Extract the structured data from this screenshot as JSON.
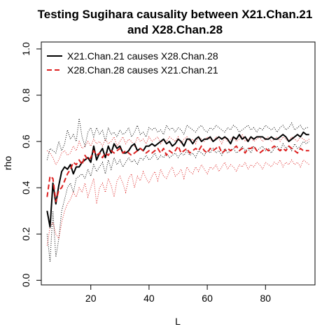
{
  "chart_data": {
    "type": "line",
    "title": [
      "Testing Sugihara causality between  X21.Chan.21",
      "and X28.Chan.28"
    ],
    "xlabel": "L",
    "ylabel": "rho",
    "xlim": [
      3,
      97
    ],
    "ylim": [
      -0.02,
      1.03
    ],
    "xticks": [
      20,
      40,
      60,
      80
    ],
    "yticks": [
      0.0,
      0.2,
      0.4,
      0.6,
      0.8,
      1.0
    ],
    "x": [
      5,
      6,
      7,
      8,
      9,
      10,
      11,
      12,
      13,
      14,
      15,
      16,
      17,
      18,
      19,
      20,
      21,
      22,
      23,
      24,
      25,
      26,
      27,
      28,
      29,
      30,
      31,
      32,
      33,
      34,
      35,
      36,
      37,
      38,
      39,
      40,
      41,
      42,
      43,
      44,
      45,
      46,
      47,
      48,
      49,
      50,
      51,
      52,
      53,
      54,
      55,
      56,
      57,
      58,
      59,
      60,
      61,
      62,
      63,
      64,
      65,
      66,
      67,
      68,
      69,
      70,
      71,
      72,
      73,
      74,
      75,
      76,
      77,
      78,
      79,
      80,
      81,
      82,
      83,
      84,
      85,
      86,
      87,
      88,
      89,
      90,
      91,
      92,
      93,
      94,
      95
    ],
    "series": [
      {
        "name": "X21.Chan.21 causes X28.Chan.28",
        "color": "#000000",
        "dash": "solid",
        "values": [
          0.3,
          0.23,
          0.42,
          0.33,
          0.41,
          0.47,
          0.49,
          0.48,
          0.5,
          0.46,
          0.49,
          0.49,
          0.51,
          0.52,
          0.53,
          0.51,
          0.58,
          0.52,
          0.55,
          0.57,
          0.53,
          0.58,
          0.55,
          0.59,
          0.57,
          0.58,
          0.55,
          0.55,
          0.56,
          0.58,
          0.59,
          0.56,
          0.57,
          0.56,
          0.58,
          0.58,
          0.59,
          0.58,
          0.59,
          0.6,
          0.61,
          0.59,
          0.6,
          0.58,
          0.59,
          0.61,
          0.6,
          0.58,
          0.61,
          0.61,
          0.59,
          0.61,
          0.62,
          0.6,
          0.61,
          0.61,
          0.62,
          0.6,
          0.61,
          0.62,
          0.61,
          0.62,
          0.61,
          0.59,
          0.62,
          0.61,
          0.63,
          0.61,
          0.62,
          0.6,
          0.62,
          0.61,
          0.62,
          0.62,
          0.62,
          0.61,
          0.61,
          0.62,
          0.61,
          0.61,
          0.62,
          0.63,
          0.62,
          0.6,
          0.61,
          0.62,
          0.63,
          0.62,
          0.64,
          0.63,
          0.63
        ]
      },
      {
        "name": "X28.Chan.28 causes X21.Chan.21",
        "color": "#dd2020",
        "dash": "dashed",
        "values": [
          0.36,
          0.45,
          0.44,
          0.34,
          0.39,
          0.4,
          0.43,
          0.46,
          0.48,
          0.51,
          0.5,
          0.52,
          0.5,
          0.54,
          0.52,
          0.53,
          0.56,
          0.54,
          0.55,
          0.53,
          0.55,
          0.54,
          0.56,
          0.55,
          0.56,
          0.57,
          0.55,
          0.56,
          0.55,
          0.54,
          0.55,
          0.56,
          0.57,
          0.56,
          0.55,
          0.56,
          0.55,
          0.56,
          0.57,
          0.55,
          0.57,
          0.54,
          0.56,
          0.55,
          0.56,
          0.58,
          0.55,
          0.56,
          0.57,
          0.55,
          0.56,
          0.57,
          0.56,
          0.58,
          0.56,
          0.55,
          0.57,
          0.56,
          0.57,
          0.58,
          0.55,
          0.56,
          0.57,
          0.56,
          0.57,
          0.58,
          0.56,
          0.57,
          0.55,
          0.57,
          0.57,
          0.58,
          0.56,
          0.55,
          0.56,
          0.57,
          0.56,
          0.57,
          0.58,
          0.57,
          0.56,
          0.57,
          0.56,
          0.58,
          0.57,
          0.56,
          0.55,
          0.57,
          0.56,
          0.56,
          0.56
        ]
      }
    ],
    "bands": [
      {
        "color": "#000000",
        "upper": [
          0.52,
          0.57,
          0.56,
          0.55,
          0.6,
          0.56,
          0.59,
          0.65,
          0.61,
          0.63,
          0.6,
          0.7,
          0.62,
          0.58,
          0.64,
          0.66,
          0.62,
          0.66,
          0.63,
          0.65,
          0.6,
          0.66,
          0.63,
          0.64,
          0.62,
          0.65,
          0.63,
          0.64,
          0.66,
          0.62,
          0.64,
          0.67,
          0.63,
          0.64,
          0.62,
          0.66,
          0.65,
          0.66,
          0.64,
          0.65,
          0.63,
          0.67,
          0.65,
          0.66,
          0.64,
          0.66,
          0.65,
          0.63,
          0.67,
          0.66,
          0.65,
          0.64,
          0.66,
          0.67,
          0.65,
          0.64,
          0.66,
          0.65,
          0.67,
          0.66,
          0.65,
          0.64,
          0.66,
          0.65,
          0.67,
          0.66,
          0.64,
          0.65,
          0.66,
          0.67,
          0.65,
          0.66,
          0.64,
          0.66,
          0.65,
          0.67,
          0.66,
          0.65,
          0.66,
          0.64,
          0.66,
          0.67,
          0.65,
          0.66,
          0.68,
          0.65,
          0.66,
          0.67,
          0.65,
          0.66,
          0.66
        ],
        "lower": [
          0.2,
          0.08,
          0.3,
          0.1,
          0.18,
          0.3,
          0.35,
          0.4,
          0.42,
          0.38,
          0.44,
          0.45,
          0.46,
          0.44,
          0.48,
          0.45,
          0.5,
          0.47,
          0.49,
          0.51,
          0.46,
          0.52,
          0.48,
          0.53,
          0.5,
          0.52,
          0.49,
          0.51,
          0.53,
          0.51,
          0.52,
          0.5,
          0.53,
          0.52,
          0.54,
          0.52,
          0.53,
          0.55,
          0.52,
          0.54,
          0.53,
          0.55,
          0.53,
          0.54,
          0.55,
          0.53,
          0.55,
          0.54,
          0.56,
          0.54,
          0.55,
          0.53,
          0.56,
          0.55,
          0.54,
          0.56,
          0.55,
          0.57,
          0.55,
          0.56,
          0.54,
          0.57,
          0.55,
          0.56,
          0.57,
          0.55,
          0.56,
          0.58,
          0.56,
          0.57,
          0.55,
          0.58,
          0.56,
          0.57,
          0.58,
          0.56,
          0.57,
          0.55,
          0.57,
          0.58,
          0.56,
          0.59,
          0.57,
          0.58,
          0.56,
          0.59,
          0.57,
          0.58,
          0.6,
          0.59,
          0.6
        ]
      },
      {
        "color": "#dd2020",
        "upper": [
          0.56,
          0.55,
          0.53,
          0.5,
          0.52,
          0.55,
          0.56,
          0.54,
          0.55,
          0.58,
          0.56,
          0.6,
          0.57,
          0.58,
          0.6,
          0.58,
          0.61,
          0.59,
          0.6,
          0.58,
          0.61,
          0.59,
          0.6,
          0.62,
          0.58,
          0.6,
          0.62,
          0.59,
          0.61,
          0.6,
          0.58,
          0.62,
          0.6,
          0.61,
          0.59,
          0.62,
          0.6,
          0.61,
          0.62,
          0.59,
          0.61,
          0.6,
          0.62,
          0.61,
          0.6,
          0.62,
          0.59,
          0.61,
          0.62,
          0.6,
          0.61,
          0.59,
          0.62,
          0.61,
          0.6,
          0.62,
          0.61,
          0.6,
          0.62,
          0.61,
          0.59,
          0.62,
          0.6,
          0.61,
          0.62,
          0.6,
          0.61,
          0.63,
          0.6,
          0.61,
          0.62,
          0.6,
          0.61,
          0.62,
          0.6,
          0.61,
          0.62,
          0.6,
          0.61,
          0.62,
          0.6,
          0.62,
          0.61,
          0.6,
          0.62,
          0.61,
          0.6,
          0.62,
          0.61,
          0.6,
          0.61
        ],
        "lower": [
          0.15,
          0.23,
          0.25,
          0.2,
          0.18,
          0.25,
          0.3,
          0.33,
          0.35,
          0.38,
          0.36,
          0.4,
          0.38,
          0.42,
          0.36,
          0.4,
          0.44,
          0.33,
          0.4,
          0.42,
          0.38,
          0.44,
          0.41,
          0.36,
          0.43,
          0.45,
          0.42,
          0.38,
          0.44,
          0.46,
          0.4,
          0.45,
          0.43,
          0.47,
          0.44,
          0.42,
          0.45,
          0.47,
          0.43,
          0.48,
          0.45,
          0.44,
          0.47,
          0.49,
          0.45,
          0.46,
          0.48,
          0.44,
          0.49,
          0.47,
          0.46,
          0.49,
          0.47,
          0.5,
          0.48,
          0.46,
          0.49,
          0.48,
          0.5,
          0.47,
          0.49,
          0.51,
          0.48,
          0.5,
          0.49,
          0.47,
          0.5,
          0.49,
          0.51,
          0.48,
          0.5,
          0.49,
          0.51,
          0.5,
          0.48,
          0.51,
          0.5,
          0.49,
          0.51,
          0.5,
          0.52,
          0.49,
          0.51,
          0.5,
          0.52,
          0.5,
          0.51,
          0.49,
          0.52,
          0.51,
          0.5
        ]
      }
    ],
    "legend": {
      "position": "top-left",
      "entries": [
        {
          "label": "X21.Chan.21 causes X28.Chan.28",
          "color": "#000000",
          "dash": "solid"
        },
        {
          "label": "X28.Chan.28 causes X21.Chan.21",
          "color": "#dd2020",
          "dash": "dashed"
        }
      ]
    },
    "grid": false
  }
}
